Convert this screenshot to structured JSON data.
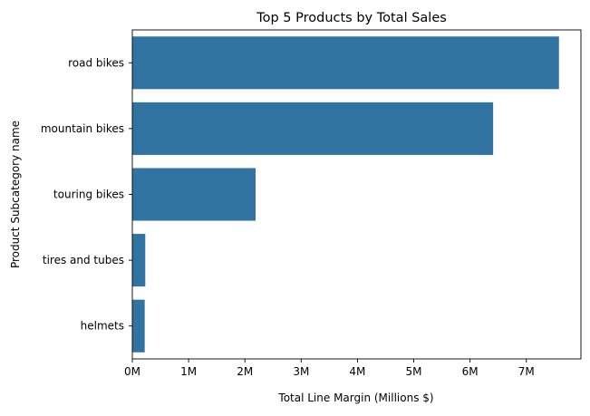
{
  "chart_data": {
    "type": "bar",
    "orientation": "horizontal",
    "title": "Top 5 Products by Total Sales",
    "xlabel": "Total Line Margin (Millions $)",
    "ylabel": "Product Subcategory name",
    "categories": [
      "road bikes",
      "mountain bikes",
      "touring bikes",
      "tires and tubes",
      "helmets"
    ],
    "values": [
      7.58,
      6.41,
      2.19,
      0.23,
      0.22
    ],
    "xlim": [
      0,
      7.97
    ],
    "xticks": [
      0,
      1,
      2,
      3,
      4,
      5,
      6,
      7
    ],
    "xtick_labels": [
      "0M",
      "1M",
      "2M",
      "3M",
      "4M",
      "5M",
      "6M",
      "7M"
    ],
    "grid": false,
    "colors": {
      "bar": "#3274a1"
    }
  }
}
